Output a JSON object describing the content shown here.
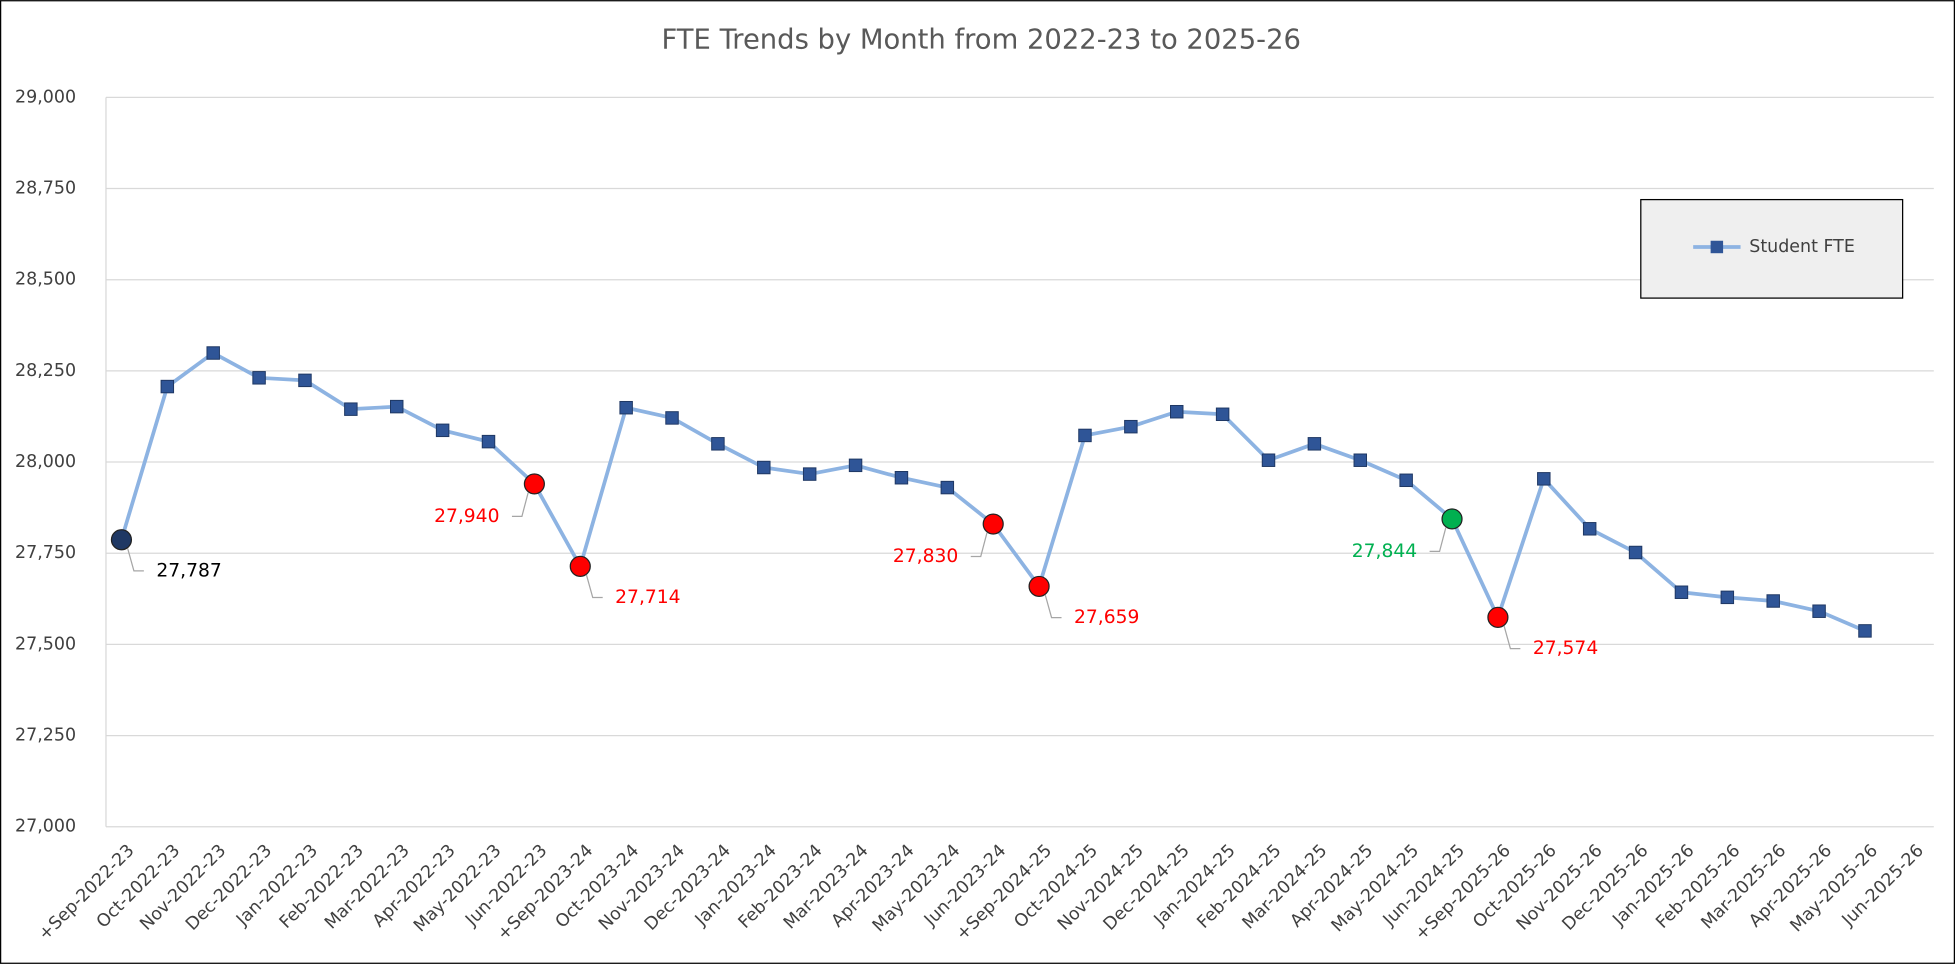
{
  "chart_data": {
    "type": "line",
    "title": "FTE Trends by Month from 2022-23 to 2025-26",
    "categories": [
      "+Sep-2022-23",
      "Oct-2022-23",
      "Nov-2022-23",
      "Dec-2022-23",
      "Jan-2022-23",
      "Feb-2022-23",
      "Mar-2022-23",
      "Apr-2022-23",
      "May-2022-23",
      "Jun-2022-23",
      "+Sep-2023-24",
      "Oct-2023-24",
      "Nov-2023-24",
      "Dec-2023-24",
      "Jan-2023-24",
      "Feb-2023-24",
      "Mar-2023-24",
      "Apr-2023-24",
      "May-2023-24",
      "Jun-2023-24",
      "+Sep-2024-25",
      "Oct-2024-25",
      "Nov-2024-25",
      "Dec-2024-25",
      "Jan-2024-25",
      "Feb-2024-25",
      "Mar-2024-25",
      "Apr-2024-25",
      "May-2024-25",
      "Jun-2024-25",
      "+Sep-2025-26",
      "Oct-2025-26",
      "Nov-2025-26",
      "Dec-2025-26",
      "Jan-2025-26",
      "Feb-2025-26",
      "Mar-2025-26",
      "Apr-2025-26",
      "May-2025-26",
      "Jun-2025-26"
    ],
    "series": [
      {
        "name": "Student FTE",
        "color": "#8db3e2",
        "marker_color": "#2f5597",
        "values": [
          27787,
          28207,
          28299,
          28231,
          28224,
          28145,
          28152,
          28087,
          28056,
          27940,
          27714,
          28149,
          28121,
          28050,
          27985,
          27967,
          27991,
          27957,
          27930,
          27830,
          27659,
          28073,
          28097,
          28138,
          28131,
          28005,
          28050,
          28005,
          27950,
          27844,
          27574,
          27954,
          27817,
          27752,
          27643,
          27629,
          27619,
          27591,
          27537,
          null
        ],
        "value_labels": [
          "27,787",
          null,
          null,
          null,
          null,
          null,
          null,
          null,
          null,
          "27,940",
          "27,714",
          null,
          null,
          null,
          null,
          null,
          null,
          null,
          null,
          "27,830",
          "27,659",
          null,
          null,
          null,
          null,
          null,
          null,
          null,
          null,
          "27,844",
          "27,574",
          null,
          null,
          null,
          null,
          null,
          null,
          null,
          null,
          null
        ],
        "point_colors": [
          "#1f3864",
          null,
          null,
          null,
          null,
          null,
          null,
          null,
          null,
          "#ff0000",
          "#ff0000",
          null,
          null,
          null,
          null,
          null,
          null,
          null,
          null,
          "#ff0000",
          "#ff0000",
          null,
          null,
          null,
          null,
          null,
          null,
          null,
          null,
          "#00b050",
          "#ff0000",
          null,
          null,
          null,
          null,
          null,
          null,
          null,
          null,
          null
        ],
        "label_colors": [
          "#000000",
          null,
          null,
          null,
          null,
          null,
          null,
          null,
          null,
          "#ff0000",
          "#ff0000",
          null,
          null,
          null,
          null,
          null,
          null,
          null,
          null,
          "#ff0000",
          "#ff0000",
          null,
          null,
          null,
          null,
          null,
          null,
          null,
          null,
          "#00b050",
          "#ff0000",
          null,
          null,
          null,
          null,
          null,
          null,
          null,
          null,
          null
        ]
      }
    ],
    "ylim": [
      27000,
      29000
    ],
    "yticks": [
      {
        "value": 27000,
        "label": "27,000"
      },
      {
        "value": 27250,
        "label": "27,250"
      },
      {
        "value": 27500,
        "label": "27,500"
      },
      {
        "value": 27750,
        "label": "27,750"
      },
      {
        "value": 28000,
        "label": "28,000"
      },
      {
        "value": 28250,
        "label": "28,250"
      },
      {
        "value": 28500,
        "label": "28,500"
      },
      {
        "value": 28750,
        "label": "28,750"
      },
      {
        "value": 29000,
        "label": "29,000"
      }
    ],
    "grid": true,
    "legend": "upper right"
  }
}
